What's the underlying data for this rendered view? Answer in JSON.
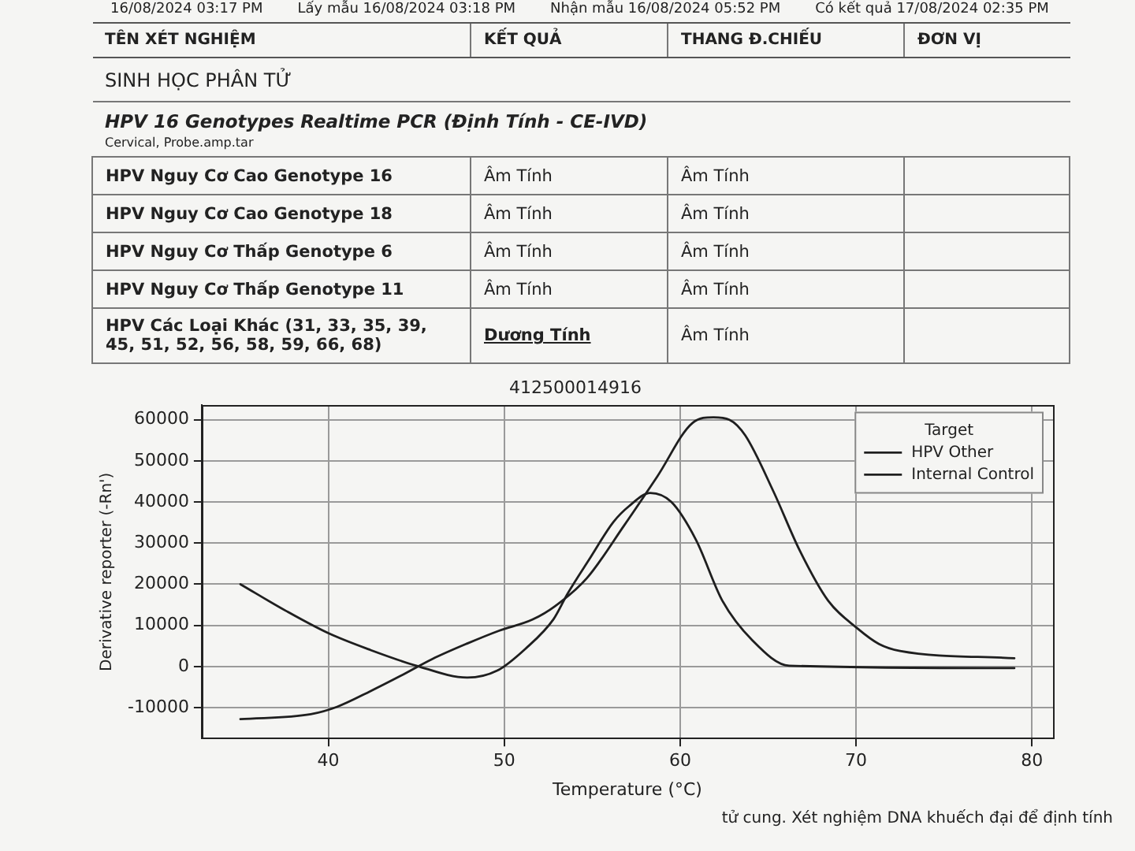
{
  "chart_data": [
    {
      "type": "other",
      "title": "SINH HỌC PHÂN TỬ",
      "subtitle": "HPV 16 Genotypes Realtime PCR (Định Tính - CE-IVD)",
      "annotations": [
        "16/08/2024 03:17 PM",
        "Lấy mẫu 16/08/2024 03:18 PM",
        "Nhận mẫu 16/08/2024 05:52 PM",
        "Có kết quả 17/08/2024 02:35 PM",
        "TÊN XÉT NGHIỆM",
        "KẾT QUẢ",
        "THANG Đ.CHIẾU",
        "ĐƠN VỊ",
        "Cervical, Probe.amp.tar",
        "HPV Nguy Cơ Cao Genotype 16",
        "Âm Tính",
        "Âm Tính",
        "HPV Nguy Cơ Cao Genotype 18",
        "Âm Tính",
        "Âm Tính",
        "HPV Nguy Cơ Thấp Genotype 6",
        "Âm Tính",
        "Âm Tính",
        "HPV Nguy Cơ Thấp Genotype 11",
        "Âm Tính",
        "Âm Tính",
        "HPV Các Loại Khác (31, 33, 35, 39, 45, 51, 52, 56, 58, 59, 66, 68)",
        "Dương Tính",
        "Âm Tính"
      ]
    },
    {
      "type": "line",
      "title": "412500014916",
      "xlabel": "Temperature (°C)",
      "ylabel": "Derivative reporter (-Rn')",
      "legend_title": "Target",
      "legend": "top right",
      "grid": true,
      "xlim": [
        32.8,
        81.2
      ],
      "ylim": [
        -17500,
        63500
      ],
      "xticks": [
        40,
        50,
        60,
        70,
        80
      ],
      "yticks": [
        -10000,
        0,
        10000,
        20000,
        30000,
        40000,
        50000,
        60000
      ],
      "series": [
        {
          "name": "HPV Other",
          "color": "#1f1f1f",
          "x": [
            35,
            39,
            40.5,
            42.3,
            44.1,
            45.9,
            47.9,
            49.7,
            51.6,
            52.9,
            54.7,
            56.8,
            58.7,
            60.7,
            61.9,
            62.8,
            63.7,
            65.3,
            66.8,
            68.4,
            70.1,
            71.3,
            72.5,
            79
          ],
          "values": [
            -12800,
            -11600,
            -9800,
            -6200,
            -2300,
            1800,
            5600,
            8700,
            11400,
            14700,
            21500,
            34200,
            46200,
            59200,
            60600,
            60000,
            56200,
            42600,
            28200,
            16100,
            9200,
            5500,
            3800,
            2000
          ]
        },
        {
          "name": "Internal Control",
          "color": "#1f1f1f",
          "x": [
            35,
            37.6,
            40,
            42.4,
            45,
            47.9,
            49.6,
            51.2,
            52.8,
            53.6,
            54.9,
            56.2,
            57.1,
            58.3,
            59.5,
            60.9,
            62.4,
            64.1,
            66.2,
            79
          ],
          "values": [
            20000,
            13500,
            8100,
            4000,
            200,
            -2700,
            -1000,
            4300,
            11500,
            17700,
            26500,
            35100,
            39000,
            42200,
            40000,
            30800,
            16000,
            6400,
            200,
            -400
          ]
        }
      ],
      "annotations": [
        "tử cung. Xét nghiệm DNA khuếch đại để định tính"
      ]
    }
  ]
}
